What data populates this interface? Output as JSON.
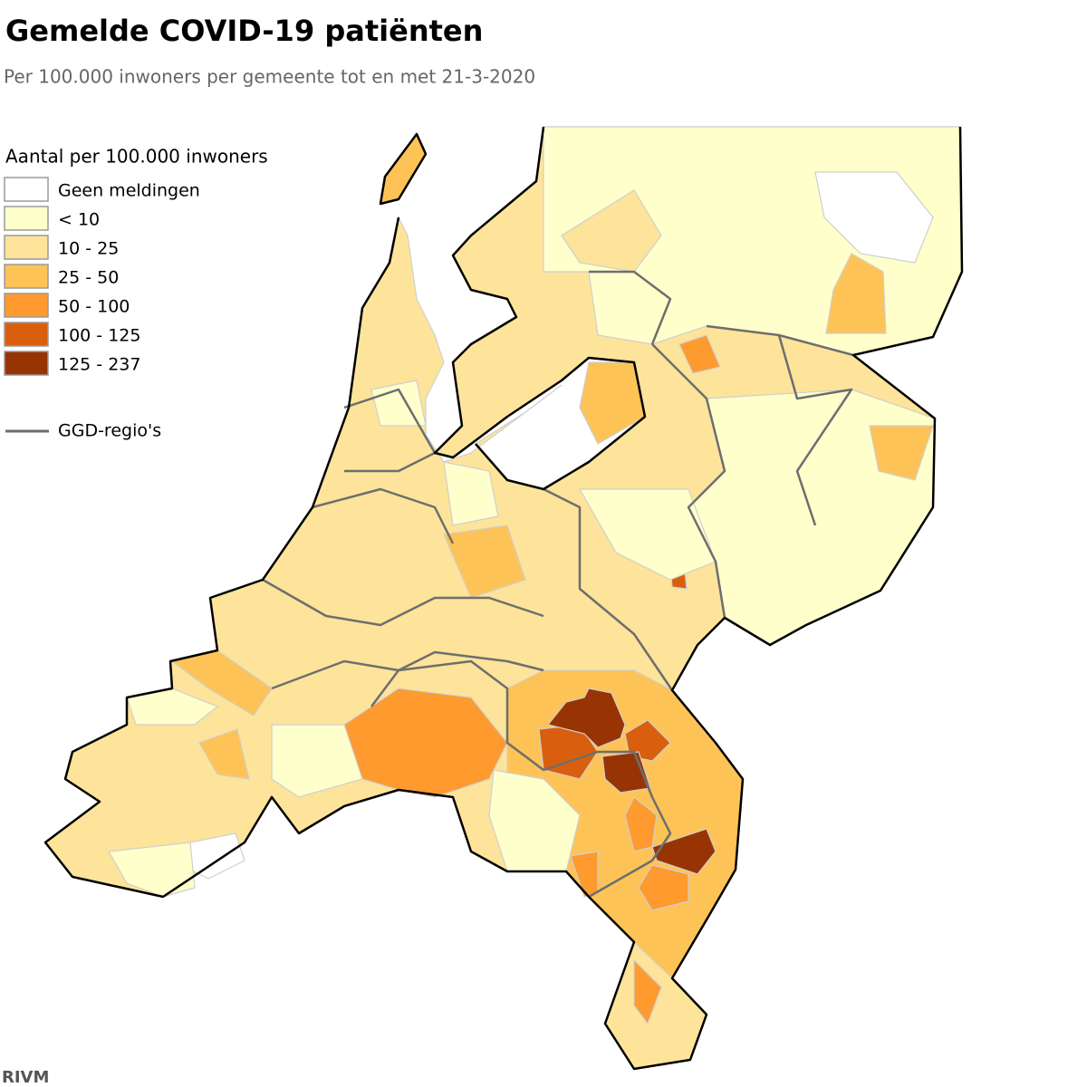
{
  "header": {
    "title": "Gemelde COVID-19 patiënten",
    "subtitle": "Per 100.000 inwoners per gemeente tot en met 21-3-2020"
  },
  "legend": {
    "title": "Aantal per 100.000 inwoners",
    "items": [
      {
        "label": "Geen meldingen",
        "color": "#ffffff"
      },
      {
        "label": "< 10",
        "color": "#ffffcc"
      },
      {
        "label": "10 - 25",
        "color": "#fde49a"
      },
      {
        "label": "25 - 50",
        "color": "#fec356"
      },
      {
        "label": "50 - 100",
        "color": "#fe9a2e"
      },
      {
        "label": "100 - 125",
        "color": "#d95f0e"
      },
      {
        "label": "125 - 237",
        "color": "#983404"
      }
    ],
    "line": {
      "label": "GGD-regio's",
      "color": "#6e6e6e"
    }
  },
  "source": "RIVM"
}
